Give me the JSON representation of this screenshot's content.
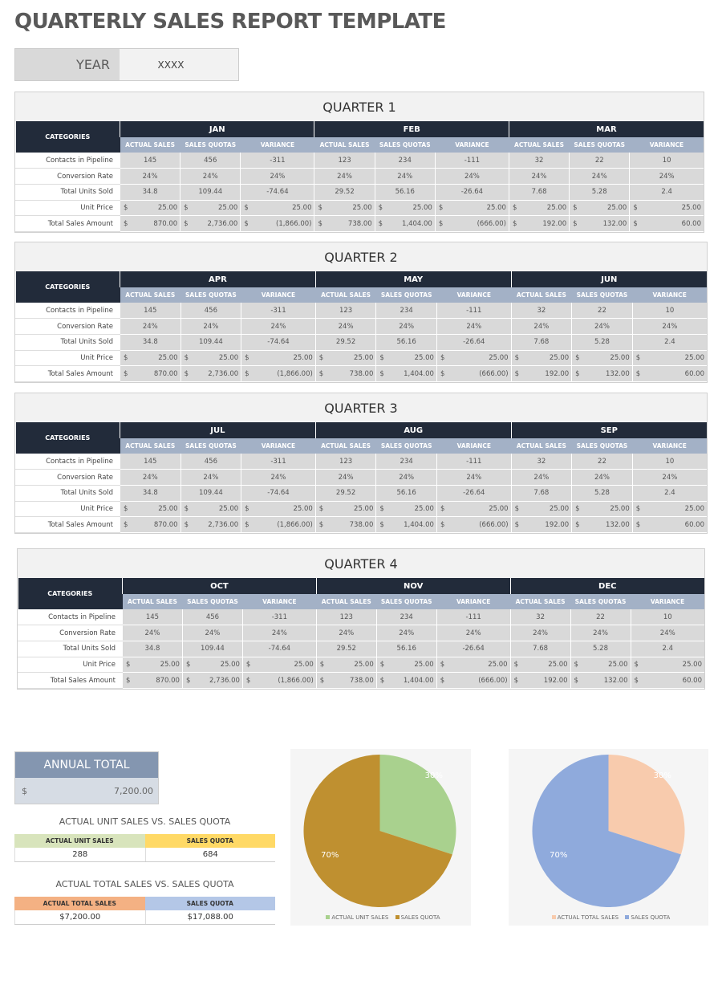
{
  "title": "QUARTERLY SALES REPORT TEMPLATE",
  "year": {
    "label": "YEAR",
    "value": "XXXX"
  },
  "categories_label": "CATEGORIES",
  "sub_headers": [
    "ACTUAL SALES",
    "SALES QUOTAS",
    "VARIANCE"
  ],
  "row_labels": [
    "Contacts in Pipeline",
    "Conversion Rate",
    "Total Units Sold",
    "Unit Price",
    "Total Sales Amount"
  ],
  "currency_symbol": "$",
  "quarters": [
    {
      "title": "QUARTER 1",
      "months": [
        {
          "name": "JAN",
          "rows": [
            [
              "145",
              "456",
              "-311"
            ],
            [
              "24%",
              "24%",
              "24%"
            ],
            [
              "34.8",
              "109.44",
              "-74.64"
            ],
            [
              "25.00",
              "25.00",
              "25.00"
            ],
            [
              "870.00",
              "2,736.00",
              "(1,866.00)"
            ]
          ]
        },
        {
          "name": "FEB",
          "rows": [
            [
              "123",
              "234",
              "-111"
            ],
            [
              "24%",
              "24%",
              "24%"
            ],
            [
              "29.52",
              "56.16",
              "-26.64"
            ],
            [
              "25.00",
              "25.00",
              "25.00"
            ],
            [
              "738.00",
              "1,404.00",
              "(666.00)"
            ]
          ]
        },
        {
          "name": "MAR",
          "rows": [
            [
              "32",
              "22",
              "10"
            ],
            [
              "24%",
              "24%",
              "24%"
            ],
            [
              "7.68",
              "5.28",
              "2.4"
            ],
            [
              "25.00",
              "25.00",
              "25.00"
            ],
            [
              "192.00",
              "132.00",
              "60.00"
            ]
          ]
        }
      ]
    },
    {
      "title": "QUARTER 2",
      "months": [
        {
          "name": "APR",
          "rows": [
            [
              "145",
              "456",
              "-311"
            ],
            [
              "24%",
              "24%",
              "24%"
            ],
            [
              "34.8",
              "109.44",
              "-74.64"
            ],
            [
              "25.00",
              "25.00",
              "25.00"
            ],
            [
              "870.00",
              "2,736.00",
              "(1,866.00)"
            ]
          ]
        },
        {
          "name": "MAY",
          "rows": [
            [
              "123",
              "234",
              "-111"
            ],
            [
              "24%",
              "24%",
              "24%"
            ],
            [
              "29.52",
              "56.16",
              "-26.64"
            ],
            [
              "25.00",
              "25.00",
              "25.00"
            ],
            [
              "738.00",
              "1,404.00",
              "(666.00)"
            ]
          ]
        },
        {
          "name": "JUN",
          "rows": [
            [
              "32",
              "22",
              "10"
            ],
            [
              "24%",
              "24%",
              "24%"
            ],
            [
              "7.68",
              "5.28",
              "2.4"
            ],
            [
              "25.00",
              "25.00",
              "25.00"
            ],
            [
              "192.00",
              "132.00",
              "60.00"
            ]
          ]
        }
      ]
    },
    {
      "title": "QUARTER 3",
      "months": [
        {
          "name": "JUL",
          "rows": [
            [
              "145",
              "456",
              "-311"
            ],
            [
              "24%",
              "24%",
              "24%"
            ],
            [
              "34.8",
              "109.44",
              "-74.64"
            ],
            [
              "25.00",
              "25.00",
              "25.00"
            ],
            [
              "870.00",
              "2,736.00",
              "(1,866.00)"
            ]
          ]
        },
        {
          "name": "AUG",
          "rows": [
            [
              "123",
              "234",
              "-111"
            ],
            [
              "24%",
              "24%",
              "24%"
            ],
            [
              "29.52",
              "56.16",
              "-26.64"
            ],
            [
              "25.00",
              "25.00",
              "25.00"
            ],
            [
              "738.00",
              "1,404.00",
              "(666.00)"
            ]
          ]
        },
        {
          "name": "SEP",
          "rows": [
            [
              "32",
              "22",
              "10"
            ],
            [
              "24%",
              "24%",
              "24%"
            ],
            [
              "7.68",
              "5.28",
              "2.4"
            ],
            [
              "25.00",
              "25.00",
              "25.00"
            ],
            [
              "192.00",
              "132.00",
              "60.00"
            ]
          ]
        }
      ]
    },
    {
      "title": "QUARTER 4",
      "months": [
        {
          "name": "OCT",
          "rows": [
            [
              "145",
              "456",
              "-311"
            ],
            [
              "24%",
              "24%",
              "24%"
            ],
            [
              "34.8",
              "109.44",
              "-74.64"
            ],
            [
              "25.00",
              "25.00",
              "25.00"
            ],
            [
              "870.00",
              "2,736.00",
              "(1,866.00)"
            ]
          ]
        },
        {
          "name": "NOV",
          "rows": [
            [
              "123",
              "234",
              "-111"
            ],
            [
              "24%",
              "24%",
              "24%"
            ],
            [
              "29.52",
              "56.16",
              "-26.64"
            ],
            [
              "25.00",
              "25.00",
              "25.00"
            ],
            [
              "738.00",
              "1,404.00",
              "(666.00)"
            ]
          ]
        },
        {
          "name": "DEC",
          "rows": [
            [
              "32",
              "22",
              "10"
            ],
            [
              "24%",
              "24%",
              "24%"
            ],
            [
              "7.68",
              "5.28",
              "2.4"
            ],
            [
              "25.00",
              "25.00",
              "25.00"
            ],
            [
              "192.00",
              "132.00",
              "60.00"
            ]
          ]
        }
      ]
    }
  ],
  "annual": {
    "label": "ANNUAL TOTAL",
    "currency": "$",
    "value": "7,200.00"
  },
  "unit_compare": {
    "title": "ACTUAL UNIT SALES VS. SALES QUOTA",
    "headers": [
      "ACTUAL UNIT SALES",
      "SALES QUOTA"
    ],
    "values": [
      "288",
      "684"
    ],
    "colors": [
      "#d8e4bc",
      "#ffd966"
    ]
  },
  "total_compare": {
    "title": "ACTUAL TOTAL SALES VS. SALES QUOTA",
    "headers": [
      "ACTUAL TOTAL SALES",
      "SALES QUOTA"
    ],
    "values": [
      "$7,200.00",
      "$17,088.00"
    ],
    "colors": [
      "#f4b183",
      "#b4c7e7"
    ]
  },
  "chart_data": [
    {
      "type": "pie",
      "categories": [
        "ACTUAL UNIT SALES",
        "SALES QUOTA"
      ],
      "values": [
        30,
        70
      ],
      "labels": [
        "30%",
        "70%"
      ],
      "colors": [
        "#a9d18e",
        "#bf9030"
      ],
      "legend": "bottom"
    },
    {
      "type": "pie",
      "categories": [
        "ACTUAL TOTAL SALES",
        "SALES QUOTA"
      ],
      "values": [
        30,
        70
      ],
      "labels": [
        "30%",
        "70%"
      ],
      "colors": [
        "#f8cbad",
        "#8faadc"
      ],
      "legend": "bottom"
    }
  ]
}
